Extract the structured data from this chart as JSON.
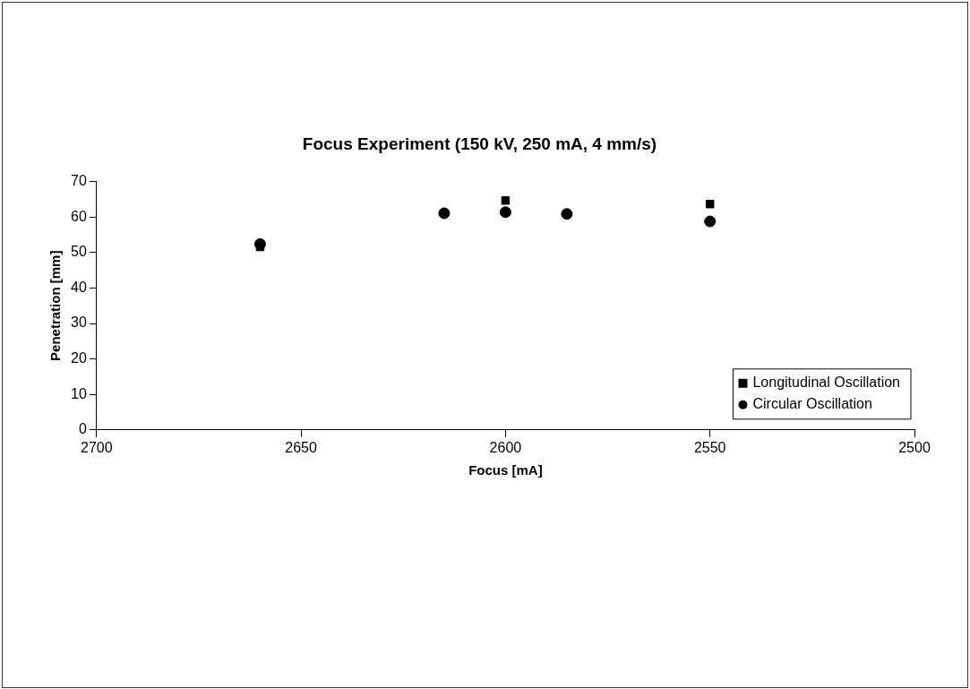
{
  "chart_data": {
    "type": "scatter",
    "title": "Focus Experiment (150 kV, 250 mA, 4 mm/s)",
    "xlabel": "Focus [mA]",
    "ylabel": "Penetration [mm]",
    "xlim": [
      2700,
      2500
    ],
    "xticks": [
      2700,
      2650,
      2600,
      2550,
      2500
    ],
    "ylim": [
      0,
      70
    ],
    "yticks": [
      0,
      10,
      20,
      30,
      40,
      50,
      60,
      70
    ],
    "grid": false,
    "legend": "bottom right",
    "series": [
      {
        "name": "Longitudinal Oscillation",
        "color": "#000000",
        "marker": "square",
        "x": [
          2660,
          2600,
          2550
        ],
        "values": [
          51.6,
          64.7,
          63.7
        ]
      },
      {
        "name": "Circular Oscillation",
        "color": "#000000",
        "marker": "circle",
        "x": [
          2660,
          2615,
          2600,
          2585,
          2550
        ],
        "values": [
          52.4,
          61.1,
          61.4,
          60.9,
          58.8
        ]
      }
    ]
  }
}
